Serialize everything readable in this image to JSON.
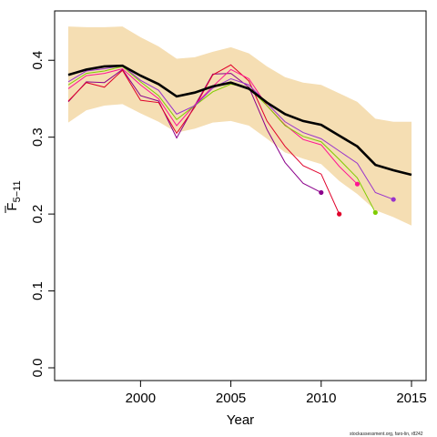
{
  "chart_data": {
    "type": "line",
    "xlabel": "Year",
    "ylabel_main": "F",
    "ylabel_sub": "5−11",
    "xlim": [
      1996,
      2015
    ],
    "ylim": [
      0,
      0.45
    ],
    "x_ticks": [
      2000,
      2005,
      2010,
      2015
    ],
    "y_ticks": [
      0.0,
      0.1,
      0.2,
      0.3,
      0.4
    ],
    "y_tick_labels": [
      "0.0",
      "0.1",
      "0.2",
      "0.3",
      "0.4"
    ],
    "band": {
      "color": "#f5deb3",
      "x": [
        1996,
        1997,
        1998,
        1999,
        2000,
        2001,
        2002,
        2003,
        2004,
        2005,
        2006,
        2007,
        2008,
        2009,
        2010,
        2011,
        2012,
        2013,
        2014,
        2015
      ],
      "upper": [
        0.444,
        0.443,
        0.443,
        0.444,
        0.43,
        0.418,
        0.402,
        0.404,
        0.411,
        0.417,
        0.409,
        0.392,
        0.378,
        0.371,
        0.368,
        0.357,
        0.346,
        0.324,
        0.32,
        0.32
      ],
      "lower": [
        0.319,
        0.335,
        0.341,
        0.343,
        0.331,
        0.32,
        0.306,
        0.311,
        0.319,
        0.321,
        0.315,
        0.298,
        0.28,
        0.272,
        0.265,
        0.243,
        0.226,
        0.205,
        0.196,
        0.185
      ]
    },
    "main_series": {
      "color": "#000000",
      "x": [
        1996,
        1997,
        1998,
        1999,
        2000,
        2001,
        2002,
        2003,
        2004,
        2005,
        2006,
        2007,
        2008,
        2009,
        2010,
        2011,
        2012,
        2013,
        2014,
        2015
      ],
      "values": [
        0.381,
        0.388,
        0.392,
        0.393,
        0.38,
        0.369,
        0.353,
        0.358,
        0.366,
        0.371,
        0.363,
        0.345,
        0.33,
        0.321,
        0.316,
        0.302,
        0.288,
        0.264,
        0.257,
        0.251
      ]
    },
    "retro_series": [
      {
        "color": "#8b008b",
        "x": [
          1996,
          1997,
          1998,
          1999,
          2000,
          2001,
          2002,
          2003,
          2004,
          2005,
          2006,
          2007,
          2008,
          2009,
          2010
        ],
        "values": [
          0.346,
          0.372,
          0.371,
          0.388,
          0.354,
          0.347,
          0.299,
          0.341,
          0.382,
          0.383,
          0.365,
          0.31,
          0.267,
          0.24,
          0.228
        ]
      },
      {
        "color": "#e0002a",
        "x": [
          1996,
          1997,
          1998,
          1999,
          2000,
          2001,
          2002,
          2003,
          2004,
          2005,
          2006,
          2007,
          2008,
          2009,
          2010,
          2011
        ],
        "values": [
          0.347,
          0.371,
          0.365,
          0.387,
          0.348,
          0.345,
          0.305,
          0.339,
          0.381,
          0.394,
          0.373,
          0.321,
          0.288,
          0.263,
          0.252,
          0.2
        ]
      },
      {
        "color": "#ff1493",
        "x": [
          1996,
          1997,
          1998,
          1999,
          2000,
          2001,
          2002,
          2003,
          2004,
          2005,
          2006,
          2007,
          2008,
          2009,
          2010,
          2011,
          2012
        ],
        "values": [
          0.363,
          0.38,
          0.383,
          0.389,
          0.368,
          0.35,
          0.315,
          0.342,
          0.366,
          0.388,
          0.376,
          0.341,
          0.316,
          0.297,
          0.29,
          0.262,
          0.239
        ]
      },
      {
        "color": "#7fcc00",
        "x": [
          1996,
          1997,
          1998,
          1999,
          2000,
          2001,
          2002,
          2003,
          2004,
          2005,
          2006,
          2007,
          2008,
          2009,
          2010,
          2011,
          2012,
          2013
        ],
        "values": [
          0.368,
          0.383,
          0.386,
          0.392,
          0.372,
          0.354,
          0.323,
          0.341,
          0.359,
          0.369,
          0.364,
          0.341,
          0.315,
          0.301,
          0.294,
          0.271,
          0.247,
          0.202
        ]
      },
      {
        "color": "#9932cc",
        "x": [
          1996,
          1997,
          1998,
          1999,
          2000,
          2001,
          2002,
          2003,
          2004,
          2005,
          2006,
          2007,
          2008,
          2009,
          2010,
          2011,
          2012,
          2013,
          2014
        ],
        "values": [
          0.372,
          0.386,
          0.389,
          0.393,
          0.374,
          0.361,
          0.33,
          0.341,
          0.364,
          0.376,
          0.368,
          0.344,
          0.32,
          0.306,
          0.298,
          0.282,
          0.266,
          0.228,
          0.219
        ]
      }
    ],
    "grid": false,
    "legend": "none"
  },
  "credit": "stockassessment.org, faro-lin, r8242"
}
